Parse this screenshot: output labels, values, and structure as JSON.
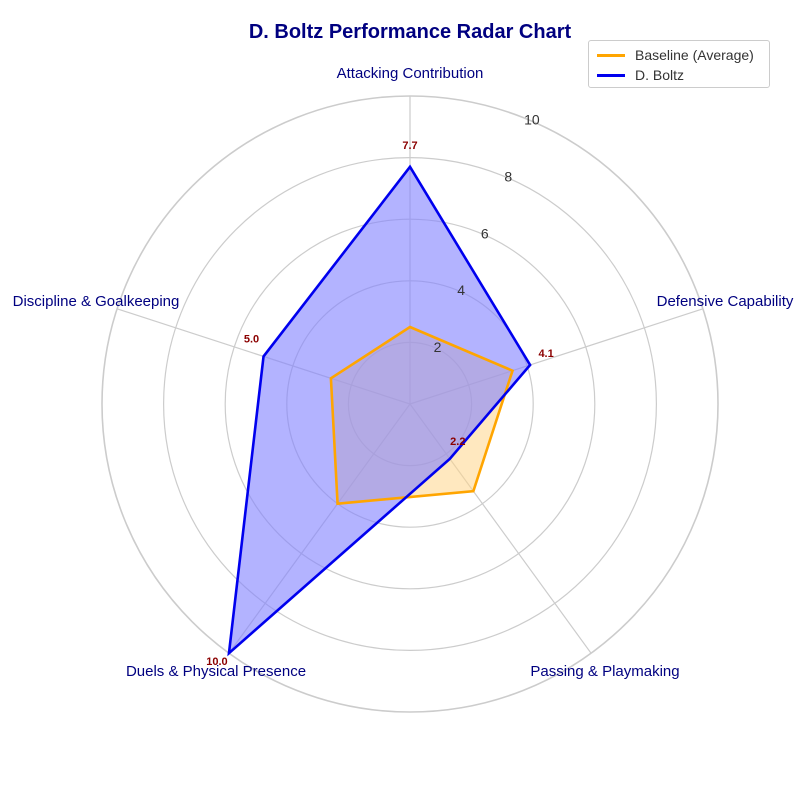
{
  "chart_data": {
    "type": "radar",
    "title": "D. Boltz Performance Radar Chart",
    "categories": [
      "Attacking Contribution",
      "Defensive Capability",
      "Passing & Playmaking",
      "Duels & Physical Presence",
      "Discipline & Goalkeeping"
    ],
    "rlim": [
      0,
      10
    ],
    "rticks": [
      "2",
      "4",
      "6",
      "8",
      "10"
    ],
    "rtick_values": [
      2,
      4,
      6,
      8,
      10
    ],
    "grid": true,
    "legend_position": "top-right",
    "series": [
      {
        "name": "Baseline (Average)",
        "values": [
          2.5,
          3.5,
          3.5,
          4.0,
          2.7
        ],
        "color": "#FFA500",
        "fill": "#FFD68A",
        "value_labels": []
      },
      {
        "name": "D. Boltz",
        "values": [
          7.7,
          4.1,
          2.2,
          10.0,
          5.0
        ],
        "color": "#0000EE",
        "fill": "#8080FF",
        "value_labels": [
          "7.7",
          "4.1",
          "2.2",
          "10.0",
          "5.0"
        ]
      }
    ]
  }
}
